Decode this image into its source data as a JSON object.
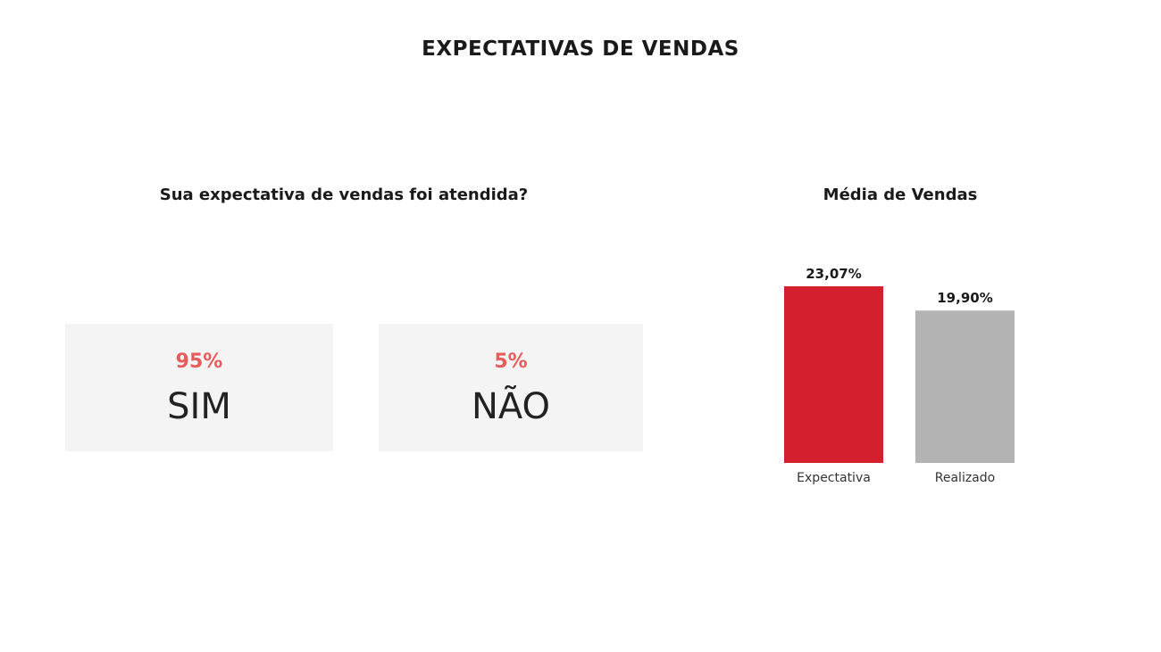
{
  "page": {
    "title": "EXPECTATIVAS DE VENDAS"
  },
  "question": {
    "title": "Sua expectativa de vendas foi atendida?",
    "answers": [
      {
        "percent": "95%",
        "label": "SIM"
      },
      {
        "percent": "5%",
        "label": "NÃO"
      }
    ],
    "colors": {
      "percent": "#e85c5c",
      "card_background": "#f4f4f4"
    }
  },
  "chart_data": {
    "type": "bar",
    "title": "Média de Vendas",
    "categories": [
      "Expectativa",
      "Realizado"
    ],
    "values": [
      23.07,
      19.9
    ],
    "value_labels": [
      "23,07%",
      "19,90%"
    ],
    "colors": [
      "#d41f2c",
      "#b3b3b3"
    ],
    "ylim": [
      0,
      23.07
    ],
    "grid": false,
    "legend": "none",
    "xlabel": "",
    "ylabel": ""
  }
}
